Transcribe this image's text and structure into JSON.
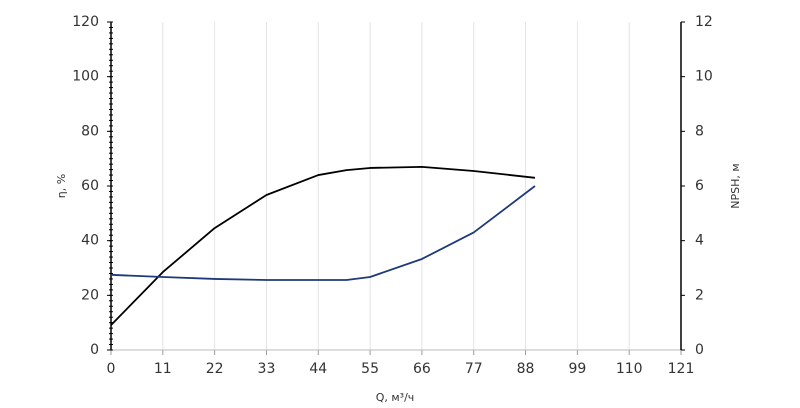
{
  "chart_data": {
    "type": "line",
    "x": [
      0,
      11,
      22,
      33,
      44,
      50,
      55,
      66,
      77,
      90
    ],
    "series": [
      {
        "name": "η",
        "color": "#000000",
        "axis": "y",
        "values": [
          9.1,
          28.5,
          44.6,
          56.7,
          64,
          65.8,
          66.6,
          67,
          65.5,
          63
        ]
      },
      {
        "name": "NPSH",
        "color": "#1f3a7a",
        "axis": "y2",
        "values": [
          2.75,
          2.67,
          2.6,
          2.56,
          2.56,
          2.56,
          2.67,
          3.33,
          4.3,
          6.0
        ]
      }
    ],
    "xlabel": "Q, м³/ч",
    "ylabel": "η, %",
    "y2label": "NPSH, м",
    "xlim": [
      0,
      121
    ],
    "xticks": [
      0,
      11,
      22,
      33,
      44,
      55,
      66,
      77,
      88,
      99,
      110,
      121
    ],
    "ylim": [
      0,
      120
    ],
    "yticks": [
      0,
      20,
      40,
      60,
      80,
      100,
      120
    ],
    "y2lim": [
      0,
      12
    ],
    "y2ticks": [
      0,
      2,
      4,
      6,
      8,
      10,
      12
    ],
    "grid": true
  }
}
